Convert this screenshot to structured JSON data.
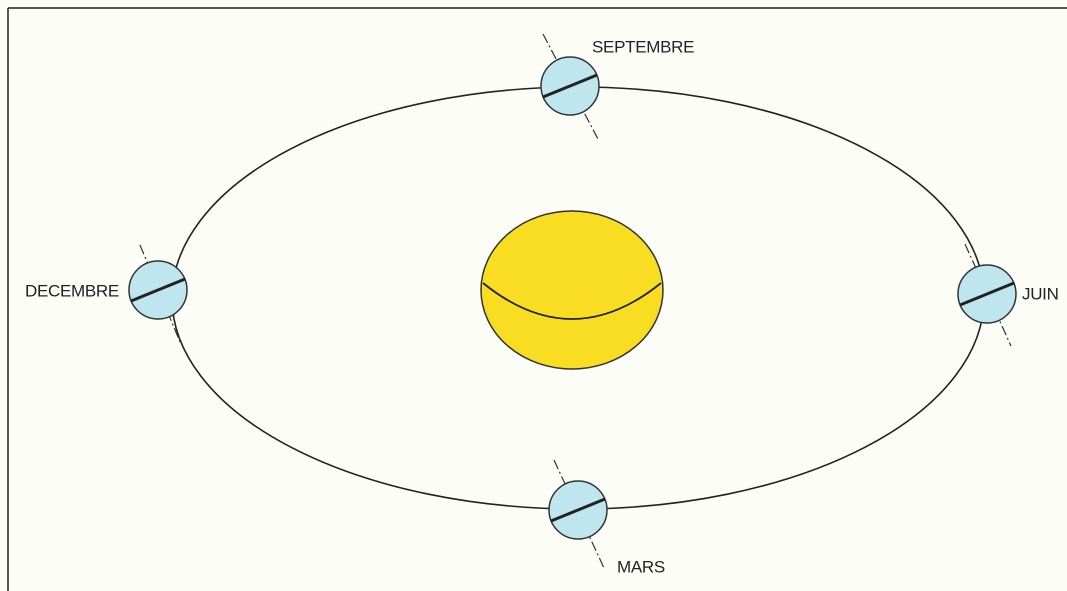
{
  "nodes": [
    {
      "label": "SEPTEMBRE"
    },
    {
      "label": "DECEMBRE"
    },
    {
      "label": "JUIN"
    },
    {
      "label": "MARS"
    }
  ]
}
